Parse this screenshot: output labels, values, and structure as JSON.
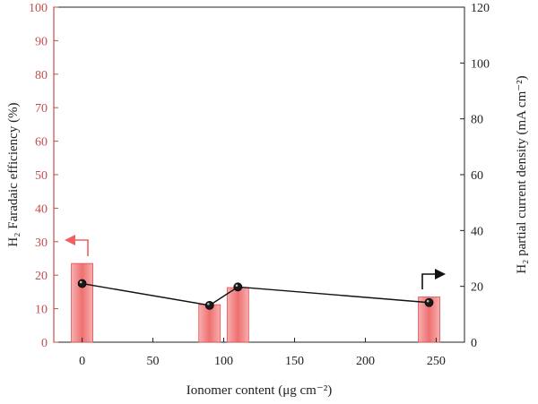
{
  "chart_data": {
    "type": "bar",
    "xlabel": "Ionomer content (μg cm⁻²)",
    "ylabel_left": "H₂ Faradaic efficiency (%)",
    "ylabel_right": "H₂ partial current density (mA cm⁻²)",
    "xlim": [
      -20,
      270
    ],
    "ylim_left": [
      0,
      100
    ],
    "ylim_right": [
      0,
      120
    ],
    "xticks": [
      0,
      50,
      100,
      150,
      200,
      250
    ],
    "yticks_left": [
      0,
      10,
      20,
      30,
      40,
      50,
      60,
      70,
      80,
      90,
      100
    ],
    "yticks_right": [
      0,
      20,
      40,
      60,
      80,
      100,
      120
    ],
    "series": [
      {
        "name": "",
        "axis": "left",
        "kind": "bar",
        "x": [
          0,
          90,
          110,
          245
        ],
        "values": [
          23.5,
          11.2,
          16.3,
          13.5
        ]
      },
      {
        "name": "",
        "axis": "right",
        "kind": "line",
        "x": [
          0,
          90,
          110,
          245
        ],
        "values": [
          21,
          13.2,
          19.8,
          14.2
        ]
      }
    ],
    "grid": false,
    "colors": {
      "bar": "#f07c7c",
      "bar_stroke": "#e05252",
      "left_axis": "#c0504d",
      "right_axis": "#222222",
      "line": "#111111",
      "left_arrow": "#f06060",
      "right_arrow": "#111111"
    }
  }
}
